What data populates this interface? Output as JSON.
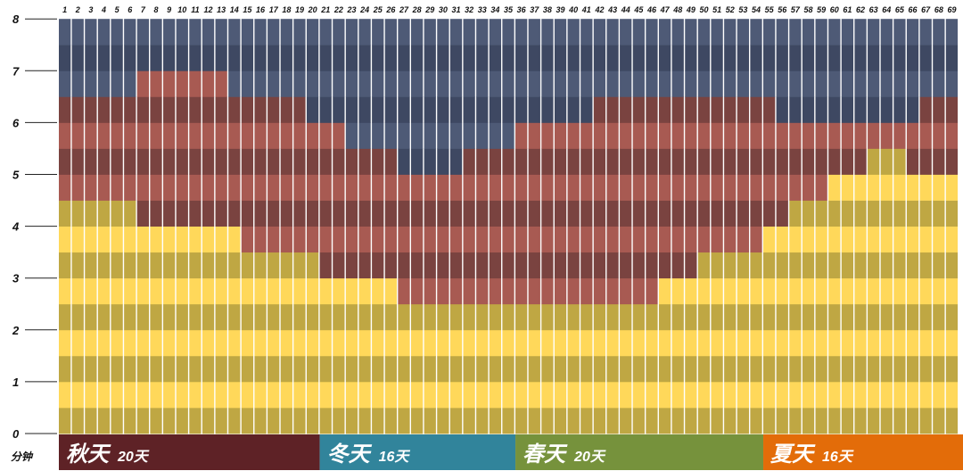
{
  "chart_data": {
    "type": "heatmap",
    "ylabel": "分钟",
    "yticks": [
      "0",
      "1",
      "2",
      "3",
      "4",
      "5",
      "6",
      "7",
      "8"
    ],
    "ylim": [
      0,
      8
    ],
    "x": [
      1,
      2,
      3,
      4,
      5,
      6,
      7,
      8,
      9,
      10,
      11,
      12,
      13,
      14,
      15,
      16,
      17,
      18,
      19,
      20,
      21,
      22,
      23,
      24,
      25,
      26,
      27,
      28,
      29,
      30,
      31,
      32,
      33,
      34,
      35,
      36,
      37,
      38,
      39,
      40,
      41,
      42,
      43,
      44,
      45,
      46,
      47,
      48,
      49,
      50,
      51,
      52,
      53,
      54,
      55,
      56,
      57,
      58,
      59,
      60,
      61,
      62,
      63,
      64,
      65,
      66,
      67,
      68,
      69
    ],
    "grid": true,
    "yellow_top": [
      4.5,
      4.5,
      4.5,
      4.5,
      4.5,
      4.5,
      4,
      4,
      4,
      4,
      4,
      4,
      4,
      4,
      3.5,
      3.5,
      3.5,
      3.5,
      3.5,
      3.5,
      3,
      3,
      3,
      3,
      3,
      3,
      2.5,
      2.5,
      2.5,
      2.5,
      2.5,
      2.5,
      2.5,
      2.5,
      2.5,
      2.5,
      2.5,
      2.5,
      2.5,
      2.5,
      2.5,
      2.5,
      2.5,
      2.5,
      2.5,
      2.5,
      3,
      3,
      3,
      3.5,
      3.5,
      3.5,
      3.5,
      3.5,
      4,
      4,
      4.5,
      4.5,
      4.5,
      5,
      5,
      5,
      5.5,
      5.5,
      5.5,
      5,
      5,
      5,
      5
    ],
    "red_top": [
      6.5,
      6.5,
      6.5,
      6.5,
      6.5,
      6.5,
      7,
      7,
      7,
      7,
      7,
      7,
      7,
      6.5,
      6.5,
      6.5,
      6.5,
      6.5,
      6.5,
      6,
      6,
      6,
      5.5,
      5.5,
      5.5,
      5.5,
      5,
      5,
      5,
      5,
      5,
      5.5,
      5.5,
      5.5,
      5.5,
      6,
      6,
      6,
      6,
      6,
      6,
      6.5,
      6.5,
      6.5,
      6.5,
      6.5,
      6.5,
      6.5,
      6.5,
      6.5,
      6.5,
      6.5,
      6.5,
      6.5,
      6.5,
      6,
      6,
      6,
      6,
      6,
      6,
      6,
      6,
      6,
      6,
      6,
      6.5,
      6.5,
      6.5
    ],
    "colors": {
      "yellow_light": "#FFD85A",
      "yellow_dark": "#BFA743",
      "red_light": "#A85A52",
      "red_dark": "#7A4340",
      "navy_light": "#4E5A76",
      "navy_dark": "#3E4862",
      "gap": "#ffffff"
    },
    "seasons": [
      {
        "name": "秋天",
        "days": "20天",
        "count": 20,
        "color": "#5E2226"
      },
      {
        "name": "冬天",
        "days": "16天",
        "count": 15,
        "color": "#31849B"
      },
      {
        "name": "春天",
        "days": "20天",
        "count": 19,
        "color": "#76923C"
      },
      {
        "name": "夏天",
        "days": "16天",
        "count": 15,
        "color": "#E36C09"
      }
    ]
  }
}
